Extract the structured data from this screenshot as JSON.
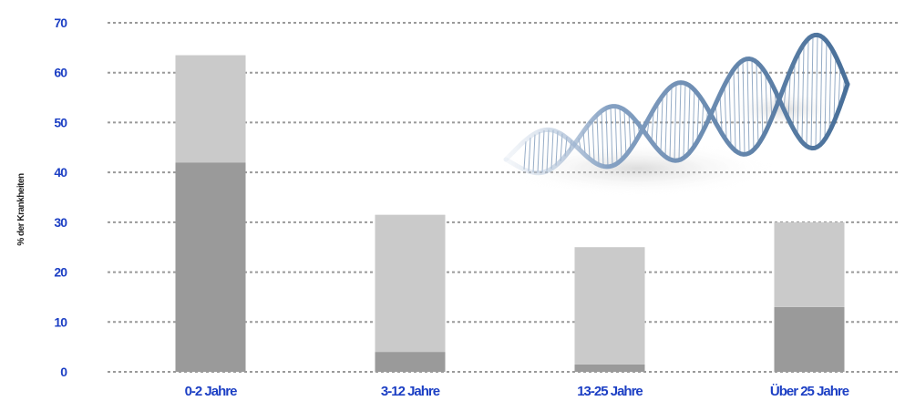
{
  "chart_data": {
    "type": "bar",
    "stacked": true,
    "categories": [
      "0-2 Jahre",
      "3-12 Jahre",
      "13-25 Jahre",
      "Über 25 Jahre"
    ],
    "series": [
      {
        "values": [
          42,
          4,
          1.5,
          13
        ],
        "color": "#9a9a9a"
      },
      {
        "values": [
          21.5,
          27.5,
          23.5,
          17
        ],
        "color": "#cacaca"
      }
    ],
    "ylabel": "% der Krankheiten",
    "yticks": [
      0,
      10,
      20,
      30,
      40,
      50,
      60,
      70
    ],
    "ylim": [
      0,
      70
    ],
    "grid": true,
    "decoration": "dna-helix-image"
  }
}
